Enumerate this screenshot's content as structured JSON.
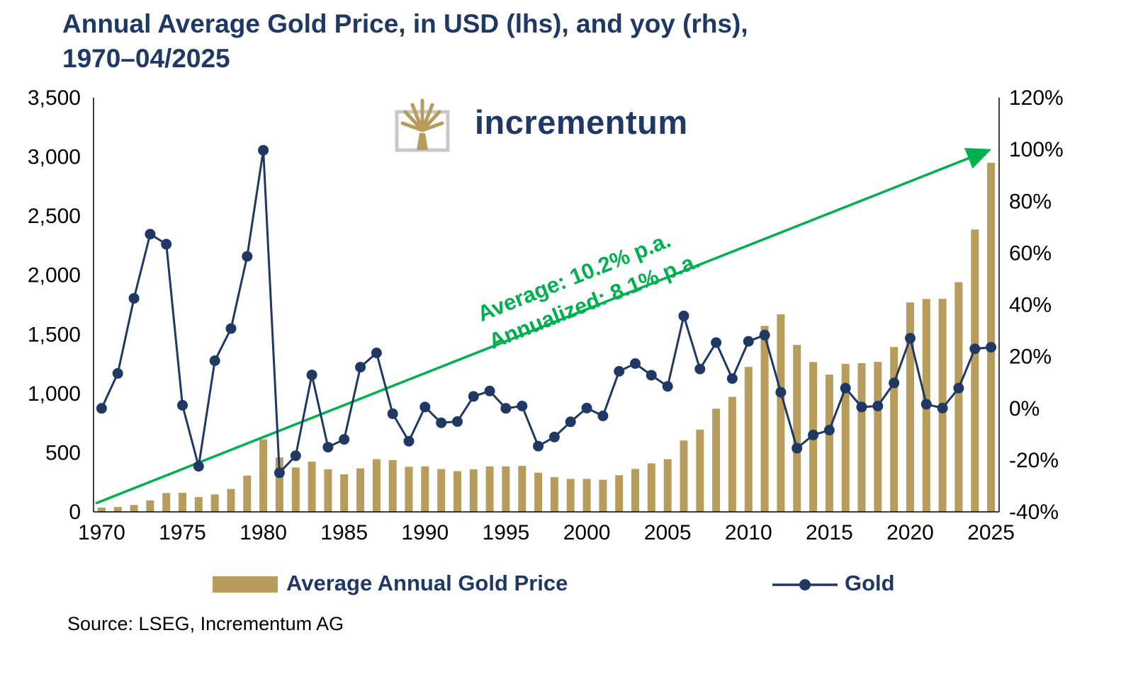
{
  "title": {
    "line1": "Annual Average Gold Price, in USD (lhs), and yoy (rhs),",
    "line2": "1970–04/2025"
  },
  "logo": {
    "wordmark": "incrementum"
  },
  "annotation": {
    "line1": "Average: 10.2% p.a.",
    "line2": "Annualized: 8.1% p.a."
  },
  "legend": {
    "bars_label": "Average Annual Gold Price",
    "line_label": "Gold"
  },
  "source": "Source: LSEG, Incrementum AG",
  "colors": {
    "bar": "#b79c5c",
    "line": "#1f3864",
    "title": "#1f3864",
    "green": "#00b050",
    "axis": "#000000",
    "logo_gold": "#b79c5c",
    "logo_frame": "#c9c9c9"
  },
  "chart_data": {
    "type": "bar",
    "title": "Annual Average Gold Price, in USD (lhs), and yoy (rhs), 1970–04/2025",
    "x": [
      1970,
      1971,
      1972,
      1973,
      1974,
      1975,
      1976,
      1977,
      1978,
      1979,
      1980,
      1981,
      1982,
      1983,
      1984,
      1985,
      1986,
      1987,
      1988,
      1989,
      1990,
      1991,
      1992,
      1993,
      1994,
      1995,
      1996,
      1997,
      1998,
      1999,
      2000,
      2001,
      2002,
      2003,
      2004,
      2005,
      2006,
      2007,
      2008,
      2009,
      2010,
      2011,
      2012,
      2013,
      2014,
      2015,
      2016,
      2017,
      2018,
      2019,
      2020,
      2021,
      2022,
      2023,
      2024,
      2025
    ],
    "series": [
      {
        "name": "Average Annual Gold Price",
        "type": "bar",
        "axis": "left",
        "values": [
          36,
          41,
          58,
          97,
          159,
          161,
          125,
          148,
          193,
          307,
          613,
          460,
          376,
          424,
          360,
          317,
          368,
          446,
          437,
          381,
          384,
          362,
          344,
          360,
          384,
          384,
          388,
          331,
          294,
          279,
          279,
          271,
          310,
          363,
          410,
          445,
          603,
          695,
          872,
          972,
          1225,
          1572,
          1669,
          1411,
          1266,
          1160,
          1251,
          1257,
          1268,
          1393,
          1770,
          1799,
          1800,
          1941,
          2386,
          2950
        ]
      },
      {
        "name": "Gold",
        "type": "line",
        "axis": "right",
        "values": [
          0,
          13.5,
          42.5,
          67.3,
          63.4,
          1.2,
          -22.4,
          18.4,
          30.8,
          58.7,
          99.7,
          -24.9,
          -18.3,
          12.9,
          -15.0,
          -12.0,
          15.9,
          21.4,
          -2.1,
          -12.7,
          0.5,
          -5.6,
          -5.1,
          4.6,
          6.7,
          0.0,
          0.9,
          -14.6,
          -11.1,
          -5.2,
          0.1,
          -2.9,
          14.3,
          17.3,
          12.8,
          8.5,
          35.7,
          15.2,
          25.4,
          11.5,
          25.9,
          28.3,
          6.2,
          -15.4,
          -10.3,
          -8.4,
          7.8,
          0.5,
          0.9,
          9.8,
          27.1,
          1.6,
          0.1,
          7.8,
          23.0,
          23.6
        ]
      }
    ],
    "left_axis": {
      "min": 0,
      "max": 3500,
      "tick_step": 500,
      "tick_labels": [
        "0",
        "500",
        "1,000",
        "1,500",
        "2,000",
        "2,500",
        "3,000",
        "3,500"
      ],
      "label": "USD"
    },
    "right_axis": {
      "min": -40,
      "max": 120,
      "tick_step": 20,
      "tick_labels": [
        "-40%",
        "-20%",
        "0%",
        "20%",
        "40%",
        "60%",
        "80%",
        "100%",
        "120%"
      ],
      "label": "yoy %"
    },
    "x_tick_labels": [
      "1970",
      "1975",
      "1980",
      "1985",
      "1990",
      "1995",
      "2000",
      "2005",
      "2010",
      "2015",
      "2020",
      "2025"
    ],
    "grid": false,
    "legend_position": "bottom",
    "annotations": [
      "Average: 10.2% p.a.",
      "Annualized: 8.1% p.a."
    ]
  }
}
